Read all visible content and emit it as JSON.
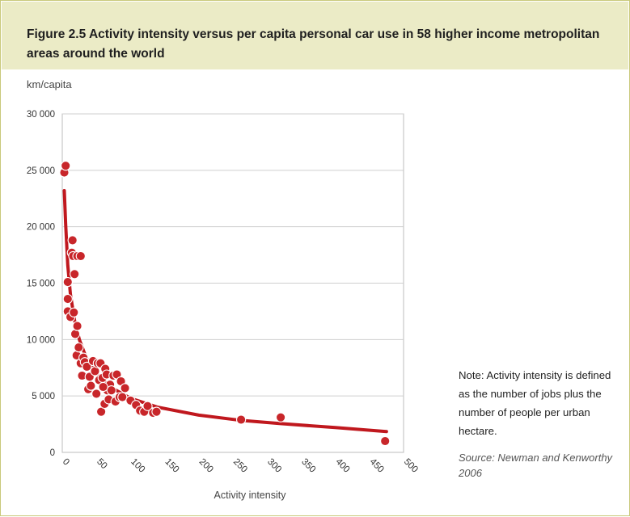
{
  "figure": {
    "title": "Figure 2.5 Activity intensity versus per capita personal car use in 58 higher income metropolitan areas around the world",
    "unit_label": "km/capita",
    "note": "Note: Activity intensity is defined as the number of jobs plus the number of people per urban hectare.",
    "source": "Source: Newman and Kenworthy 2006"
  },
  "colors": {
    "title_band": "#ebebc6",
    "border": "#c8c87a",
    "marker": "#c8262a",
    "trend": "#c0181e",
    "grid": "#cfcfcf"
  },
  "chart_data": {
    "type": "scatter",
    "title": "Figure 2.5 Activity intensity versus per capita personal car use in 58 higher income metropolitan areas around the world",
    "xlabel": "Activity intensity",
    "ylabel": "km/capita",
    "xlim": [
      0,
      500
    ],
    "ylim": [
      0,
      30000
    ],
    "x_ticks": [
      "0",
      "50",
      "100",
      "150",
      "200",
      "250",
      "300",
      "350",
      "400",
      "450",
      "500"
    ],
    "y_ticks": [
      "0",
      "5 000",
      "10 000",
      "15 000",
      "20 000",
      "25 000",
      "30 000"
    ],
    "grid": "horizontal",
    "x_tick_rotation": "diagonal",
    "series": [
      {
        "marker": "circle",
        "points": [
          [
            3,
            24800
          ],
          [
            5,
            25400
          ],
          [
            8,
            15100
          ],
          [
            8,
            13600
          ],
          [
            8,
            12500
          ],
          [
            12,
            12000
          ],
          [
            15,
            18800
          ],
          [
            14,
            17700
          ],
          [
            16,
            17400
          ],
          [
            18,
            15800
          ],
          [
            17,
            12400
          ],
          [
            22,
            17400
          ],
          [
            27,
            17400
          ],
          [
            19,
            10500
          ],
          [
            22,
            11200
          ],
          [
            21,
            8600
          ],
          [
            24,
            9300
          ],
          [
            27,
            7900
          ],
          [
            29,
            6800
          ],
          [
            31,
            8400
          ],
          [
            33,
            8000
          ],
          [
            36,
            7600
          ],
          [
            38,
            5600
          ],
          [
            40,
            6700
          ],
          [
            42,
            5900
          ],
          [
            45,
            8100
          ],
          [
            48,
            7200
          ],
          [
            50,
            5200
          ],
          [
            52,
            7900
          ],
          [
            54,
            6400
          ],
          [
            56,
            7900
          ],
          [
            57,
            3600
          ],
          [
            59,
            6600
          ],
          [
            62,
            4300
          ],
          [
            63,
            7400
          ],
          [
            65,
            6900
          ],
          [
            66,
            5500
          ],
          [
            68,
            4700
          ],
          [
            70,
            6000
          ],
          [
            72,
            5500
          ],
          [
            75,
            6800
          ],
          [
            78,
            4500
          ],
          [
            80,
            6900
          ],
          [
            84,
            4900
          ],
          [
            86,
            6300
          ],
          [
            88,
            4900
          ],
          [
            92,
            5700
          ],
          [
            100,
            4600
          ],
          [
            108,
            4200
          ],
          [
            114,
            3700
          ],
          [
            120,
            3600
          ],
          [
            125,
            4100
          ],
          [
            133,
            3500
          ],
          [
            138,
            3600
          ],
          [
            262,
            2900
          ],
          [
            320,
            3100
          ],
          [
            473,
            1000
          ],
          [
            60,
            5800
          ]
        ]
      }
    ],
    "trendline": {
      "type": "power",
      "points": [
        [
          3,
          23200
        ],
        [
          5,
          20200
        ],
        [
          8,
          16600
        ],
        [
          12,
          14000
        ],
        [
          18,
          11700
        ],
        [
          25,
          10000
        ],
        [
          35,
          8400
        ],
        [
          50,
          7000
        ],
        [
          70,
          5800
        ],
        [
          100,
          4800
        ],
        [
          140,
          4000
        ],
        [
          200,
          3300
        ],
        [
          260,
          2850
        ],
        [
          320,
          2550
        ],
        [
          400,
          2200
        ],
        [
          475,
          1850
        ]
      ]
    }
  }
}
